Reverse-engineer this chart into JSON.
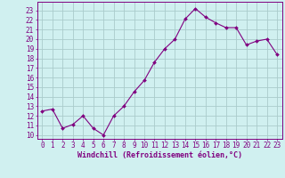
{
  "x": [
    0,
    1,
    2,
    3,
    4,
    5,
    6,
    7,
    8,
    9,
    10,
    11,
    12,
    13,
    14,
    15,
    16,
    17,
    18,
    19,
    20,
    21,
    22,
    23
  ],
  "y": [
    12.5,
    12.7,
    10.7,
    11.1,
    12.0,
    10.7,
    10.0,
    12.0,
    13.0,
    14.5,
    15.7,
    17.6,
    19.0,
    20.0,
    22.1,
    23.2,
    22.3,
    21.7,
    21.2,
    21.2,
    19.4,
    19.8,
    20.0,
    18.4
  ],
  "line_color": "#800080",
  "marker": "D",
  "marker_size": 2.0,
  "bg_color": "#d0f0f0",
  "grid_color": "#aacccc",
  "xlabel": "Windchill (Refroidissement éolien,°C)",
  "ylabel_ticks": [
    10,
    11,
    12,
    13,
    14,
    15,
    16,
    17,
    18,
    19,
    20,
    21,
    22,
    23
  ],
  "xlim": [
    -0.5,
    23.5
  ],
  "ylim": [
    9.6,
    23.9
  ],
  "xtick_labels": [
    "0",
    "1",
    "2",
    "3",
    "4",
    "5",
    "6",
    "7",
    "8",
    "9",
    "10",
    "11",
    "12",
    "13",
    "14",
    "15",
    "16",
    "17",
    "18",
    "19",
    "20",
    "21",
    "22",
    "23"
  ],
  "tick_fontsize": 5.5,
  "xlabel_fontsize": 6.0
}
